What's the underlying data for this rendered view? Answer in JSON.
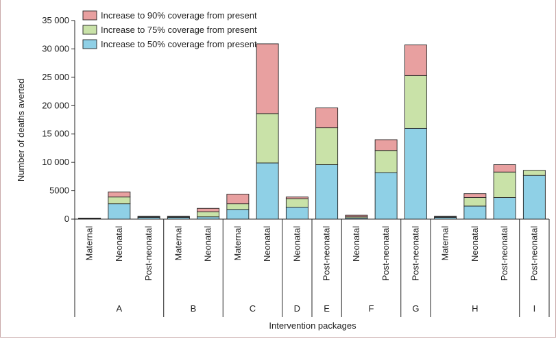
{
  "chart_data": {
    "type": "bar",
    "stacked": true,
    "xlabel": "Intervention packages",
    "ylabel": "Number of deaths averted",
    "ylim": [
      0,
      35000
    ],
    "yticks": [
      0,
      5000,
      10000,
      15000,
      20000,
      25000,
      30000,
      35000
    ],
    "ytick_labels": [
      "0",
      "5000",
      "10 000",
      "15 000",
      "20 000",
      "25 000",
      "30 000",
      "35 000"
    ],
    "legend_position": "top-left",
    "grid": false,
    "groups": [
      {
        "name": "A",
        "categories": [
          "Maternal",
          "Neonatal",
          "Post-neonatal"
        ]
      },
      {
        "name": "B",
        "categories": [
          "Maternal",
          "Neonatal"
        ]
      },
      {
        "name": "C",
        "categories": [
          "Maternal",
          "Neonatal"
        ]
      },
      {
        "name": "D",
        "categories": [
          "Neonatal"
        ]
      },
      {
        "name": "E",
        "categories": [
          "Post-neonatal"
        ]
      },
      {
        "name": "F",
        "categories": [
          "Neonatal",
          "Post-neonatal"
        ]
      },
      {
        "name": "G",
        "categories": [
          "Post-neonatal"
        ]
      },
      {
        "name": "H",
        "categories": [
          "Maternal",
          "Neonatal",
          "Post-neonatal"
        ]
      },
      {
        "name": "I",
        "categories": [
          "Post-neonatal"
        ]
      }
    ],
    "categories": [
      "Maternal",
      "Neonatal",
      "Post-neonatal",
      "Maternal",
      "Neonatal",
      "Maternal",
      "Neonatal",
      "Neonatal",
      "Post-neonatal",
      "Neonatal",
      "Post-neonatal",
      "Post-neonatal",
      "Maternal",
      "Neonatal",
      "Post-neonatal",
      "Post-neonatal"
    ],
    "series": [
      {
        "name": "Increase to 50% coverage from present",
        "color": "#8fd0e6",
        "values": [
          100,
          2700,
          300,
          300,
          400,
          1700,
          9900,
          2100,
          9600,
          200,
          8200,
          16000,
          300,
          2300,
          3800,
          7700
        ]
      },
      {
        "name": "Increase to 75% coverage from present",
        "color": "#c9e2a8",
        "values": [
          50,
          1200,
          100,
          100,
          900,
          1000,
          8700,
          1500,
          6500,
          200,
          3900,
          9300,
          100,
          1500,
          4500,
          900
        ]
      },
      {
        "name": "Increase to 90% coverage from present",
        "color": "#e8a0a0",
        "values": [
          30,
          900,
          100,
          100,
          600,
          1700,
          12300,
          300,
          3500,
          300,
          1900,
          5400,
          100,
          700,
          1300,
          0
        ]
      }
    ]
  }
}
